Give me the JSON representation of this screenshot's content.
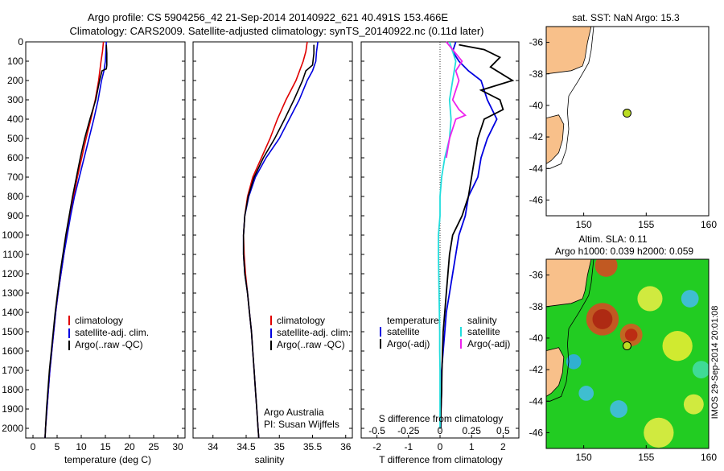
{
  "header": {
    "line1": "Argo profile: CS 5904256_42 21-Sep-2014 20140922_621 40.491S 153.466E",
    "line2": "Climatology: CARS2009. Satellite-adjusted climatology: synTS_20140922.nc (0.11d later)"
  },
  "colors": {
    "climatology": "#e00000",
    "satellite": "#0000e0",
    "argo": "#000000",
    "sal_satellite": "#22dddd",
    "sal_argo": "#ee22ee",
    "land": "#f8c08a"
  },
  "chart_data": [
    {
      "type": "line",
      "id": "temperature",
      "xlabel": "temperature (deg C)",
      "ylabel": "",
      "xlim": [
        -1.5,
        31.5
      ],
      "ylim": [
        2050,
        0
      ],
      "xticks": [
        0,
        5,
        10,
        15,
        20,
        25,
        30
      ],
      "yticks": [
        0,
        100,
        200,
        300,
        400,
        500,
        600,
        700,
        800,
        900,
        1000,
        1100,
        1200,
        1300,
        1400,
        1500,
        1600,
        1700,
        1800,
        1900,
        2000
      ],
      "legend": [
        "climatology",
        "satellite-adj. clim.",
        "Argo(..raw -QC)"
      ],
      "legend_position": "lower-center",
      "series": [
        {
          "name": "climatology",
          "color_key": "climatology",
          "points": [
            [
              14.6,
              0
            ],
            [
              14.4,
              50
            ],
            [
              14.1,
              100
            ],
            [
              13.6,
              200
            ],
            [
              12.9,
              300
            ],
            [
              12,
              400
            ],
            [
              11,
              500
            ],
            [
              10.1,
              600
            ],
            [
              9.2,
              700
            ],
            [
              8.4,
              800
            ],
            [
              7.7,
              900
            ],
            [
              7,
              1000
            ],
            [
              6.4,
              1100
            ],
            [
              5.8,
              1200
            ],
            [
              5.2,
              1300
            ],
            [
              4.7,
              1400
            ],
            [
              4.3,
              1500
            ],
            [
              3.9,
              1600
            ],
            [
              3.5,
              1700
            ],
            [
              3.2,
              1800
            ],
            [
              2.9,
              1900
            ],
            [
              2.6,
              2000
            ],
            [
              2.5,
              2050
            ]
          ]
        },
        {
          "name": "satellite-adj. clim.",
          "color_key": "satellite",
          "points": [
            [
              15.2,
              0
            ],
            [
              15.1,
              50
            ],
            [
              15,
              100
            ],
            [
              14.7,
              150
            ],
            [
              14.2,
              200
            ],
            [
              13.5,
              300
            ],
            [
              12.6,
              400
            ],
            [
              11.6,
              500
            ],
            [
              10.6,
              600
            ],
            [
              9.6,
              700
            ],
            [
              8.6,
              800
            ],
            [
              7.8,
              900
            ],
            [
              7.1,
              1000
            ],
            [
              6.4,
              1100
            ],
            [
              5.8,
              1200
            ],
            [
              5.2,
              1300
            ],
            [
              4.7,
              1400
            ],
            [
              4.3,
              1500
            ],
            [
              3.9,
              1600
            ],
            [
              3.5,
              1700
            ],
            [
              3.2,
              1800
            ],
            [
              2.9,
              1900
            ],
            [
              2.6,
              2000
            ],
            [
              2.5,
              2050
            ]
          ]
        },
        {
          "name": "Argo(..raw -QC)",
          "color_key": "argo",
          "points": [
            [
              15.2,
              15
            ],
            [
              15.3,
              60
            ],
            [
              15.3,
              120
            ],
            [
              15.2,
              140
            ],
            [
              14.3,
              150
            ],
            [
              13.8,
              200
            ],
            [
              13,
              300
            ],
            [
              11.8,
              400
            ],
            [
              10.7,
              500
            ],
            [
              9.8,
              600
            ],
            [
              9,
              700
            ],
            [
              8.2,
              800
            ],
            [
              7.5,
              900
            ],
            [
              6.8,
              1000
            ],
            [
              6.2,
              1100
            ],
            [
              5.6,
              1200
            ],
            [
              5.1,
              1300
            ],
            [
              4.6,
              1400
            ],
            [
              4.2,
              1500
            ],
            [
              3.8,
              1600
            ],
            [
              3.4,
              1700
            ],
            [
              3.1,
              1800
            ],
            [
              2.8,
              1900
            ],
            [
              2.6,
              2000
            ],
            [
              2.5,
              2050
            ]
          ]
        }
      ]
    },
    {
      "type": "line",
      "id": "salinity",
      "xlabel": "salinity",
      "ylabel": "",
      "xlim": [
        33.7,
        36.1
      ],
      "ylim": [
        2050,
        0
      ],
      "xticks": [
        34,
        34.5,
        35,
        35.5,
        36
      ],
      "yticks": [],
      "legend": [
        "climatology",
        "satellite-adj. clim.",
        "Argo(..raw -QC)"
      ],
      "legend_position": "lower-right",
      "annotation": [
        "Argo Australia",
        "PI: Susan Wijffels"
      ],
      "series": [
        {
          "name": "climatology",
          "color_key": "climatology",
          "points": [
            [
              35.42,
              0
            ],
            [
              35.4,
              50
            ],
            [
              35.36,
              100
            ],
            [
              35.25,
              200
            ],
            [
              35.1,
              300
            ],
            [
              34.97,
              400
            ],
            [
              34.86,
              500
            ],
            [
              34.73,
              600
            ],
            [
              34.6,
              700
            ],
            [
              34.52,
              800
            ],
            [
              34.48,
              900
            ],
            [
              34.46,
              1000
            ],
            [
              34.47,
              1100
            ],
            [
              34.49,
              1200
            ],
            [
              34.52,
              1300
            ],
            [
              34.55,
              1400
            ],
            [
              34.58,
              1500
            ],
            [
              34.6,
              1600
            ],
            [
              34.62,
              1700
            ],
            [
              34.64,
              1800
            ],
            [
              34.66,
              1900
            ],
            [
              34.68,
              2000
            ],
            [
              34.69,
              2050
            ]
          ]
        },
        {
          "name": "satellite-adj. clim.",
          "color_key": "satellite",
          "points": [
            [
              35.58,
              0
            ],
            [
              35.56,
              50
            ],
            [
              35.55,
              100
            ],
            [
              35.5,
              150
            ],
            [
              35.42,
              200
            ],
            [
              35.3,
              300
            ],
            [
              35.15,
              400
            ],
            [
              35.0,
              500
            ],
            [
              34.8,
              600
            ],
            [
              34.64,
              700
            ],
            [
              34.54,
              800
            ],
            [
              34.48,
              900
            ],
            [
              34.46,
              1000
            ],
            [
              34.46,
              1100
            ],
            [
              34.48,
              1200
            ],
            [
              34.52,
              1300
            ],
            [
              34.55,
              1400
            ],
            [
              34.58,
              1500
            ],
            [
              34.6,
              1600
            ],
            [
              34.62,
              1700
            ],
            [
              34.64,
              1800
            ],
            [
              34.66,
              1900
            ],
            [
              34.68,
              2000
            ],
            [
              34.69,
              2050
            ]
          ]
        },
        {
          "name": "Argo(..raw -QC)",
          "color_key": "argo",
          "points": [
            [
              35.52,
              15
            ],
            [
              35.52,
              60
            ],
            [
              35.5,
              120
            ],
            [
              35.4,
              150
            ],
            [
              35.35,
              200
            ],
            [
              35.22,
              300
            ],
            [
              35.08,
              400
            ],
            [
              34.93,
              500
            ],
            [
              34.76,
              600
            ],
            [
              34.62,
              700
            ],
            [
              34.53,
              800
            ],
            [
              34.48,
              900
            ],
            [
              34.46,
              1000
            ],
            [
              34.46,
              1100
            ],
            [
              34.48,
              1200
            ],
            [
              34.52,
              1300
            ],
            [
              34.55,
              1400
            ],
            [
              34.58,
              1500
            ],
            [
              34.6,
              1600
            ],
            [
              34.62,
              1700
            ],
            [
              34.64,
              1800
            ],
            [
              34.66,
              1900
            ],
            [
              34.68,
              2000
            ],
            [
              34.69,
              2050
            ]
          ]
        }
      ]
    },
    {
      "type": "line",
      "id": "difference",
      "xlabel": "T difference from climatology",
      "xlabel_top": "S difference from climatology",
      "xlim": [
        -2.5,
        2.5
      ],
      "ylim": [
        2050,
        0
      ],
      "xticks_T": [
        -2,
        -1,
        0,
        1,
        2
      ],
      "xticks_S": [
        "-0.5",
        "-0.25",
        "0",
        "0.25",
        "0.5"
      ],
      "legend_temperature": {
        "title": "temperature",
        "items": [
          "satellite",
          "Argo(-adj)"
        ]
      },
      "legend_salinity": {
        "title": "salinity",
        "items": [
          "satellite",
          "Argo(-adj)"
        ]
      },
      "legend_position": "lower-center",
      "series": [
        {
          "name": "T satellite",
          "color_key": "satellite",
          "points": [
            [
              0.5,
              0
            ],
            [
              0.4,
              50
            ],
            [
              0.6,
              100
            ],
            [
              0.9,
              150
            ],
            [
              1.3,
              200
            ],
            [
              1.5,
              300
            ],
            [
              1.8,
              400
            ],
            [
              1.5,
              500
            ],
            [
              1.3,
              600
            ],
            [
              1.2,
              700
            ],
            [
              0.9,
              800
            ],
            [
              0.8,
              900
            ],
            [
              0.6,
              1000
            ],
            [
              0.5,
              1100
            ],
            [
              0.4,
              1200
            ],
            [
              0.3,
              1300
            ],
            [
              0.2,
              1400
            ],
            [
              0.15,
              1500
            ],
            [
              0.1,
              1600
            ],
            [
              0.05,
              1700
            ],
            [
              0.05,
              1800
            ],
            [
              0.03,
              1900
            ],
            [
              0.02,
              2000
            ]
          ]
        },
        {
          "name": "T Argo(-adj)",
          "color_key": "argo",
          "points": [
            [
              0.6,
              15
            ],
            [
              1.4,
              40
            ],
            [
              1.9,
              80
            ],
            [
              1.6,
              130
            ],
            [
              2.3,
              200
            ],
            [
              1.3,
              250
            ],
            [
              1.9,
              300
            ],
            [
              2.0,
              350
            ],
            [
              1.4,
              400
            ],
            [
              1.2,
              500
            ],
            [
              1.1,
              600
            ],
            [
              1.0,
              700
            ],
            [
              0.9,
              800
            ],
            [
              0.7,
              900
            ],
            [
              0.4,
              1000
            ],
            [
              0.3,
              1100
            ],
            [
              0.25,
              1200
            ],
            [
              0.2,
              1300
            ],
            [
              0.15,
              1400
            ],
            [
              0.1,
              1500
            ],
            [
              0.08,
              1600
            ],
            [
              0.06,
              1700
            ],
            [
              0.05,
              1800
            ],
            [
              0.03,
              1900
            ],
            [
              0.02,
              2000
            ]
          ]
        },
        {
          "name": "S satellite",
          "color_key": "sal_satellite",
          "points": [
            [
              0.3,
              0
            ],
            [
              0.4,
              50
            ],
            [
              0.5,
              100
            ],
            [
              0.4,
              200
            ],
            [
              0.3,
              300
            ],
            [
              0.35,
              400
            ],
            [
              0.3,
              500
            ],
            [
              0.15,
              600
            ],
            [
              0.05,
              700
            ],
            [
              0.0,
              800
            ],
            [
              0.0,
              900
            ],
            [
              -0.05,
              1000
            ],
            [
              -0.05,
              1100
            ],
            [
              -0.04,
              1200
            ],
            [
              -0.03,
              1300
            ],
            [
              -0.02,
              1400
            ],
            [
              -0.01,
              1500
            ],
            [
              -0.01,
              1600
            ],
            [
              0.0,
              1700
            ],
            [
              0.0,
              1800
            ],
            [
              0.0,
              1900
            ],
            [
              0.0,
              2000
            ]
          ]
        },
        {
          "name": "S Argo(-adj)",
          "color_key": "sal_argo",
          "points": [
            [
              0.2,
              0
            ],
            [
              0.7,
              100
            ],
            [
              0.5,
              150
            ],
            [
              0.6,
              200
            ],
            [
              0.4,
              300
            ],
            [
              0.6,
              350
            ],
            [
              0.8,
              380
            ],
            [
              0.5,
              400
            ],
            [
              0.3,
              500
            ],
            [
              0.25,
              550
            ],
            [
              0.2,
              600
            ]
          ]
        }
      ]
    },
    {
      "type": "scatter",
      "id": "sst_map",
      "title": "sat. SST: NaN Argo: 15.3",
      "xlim": [
        147,
        160
      ],
      "ylim": [
        -47,
        -35
      ],
      "xticks": [
        150,
        155,
        160
      ],
      "yticks": [
        -36,
        -38,
        -40,
        -42,
        -44,
        -46
      ],
      "marker": {
        "x": 153.466,
        "y": -40.491
      }
    },
    {
      "type": "heatmap",
      "id": "sla_map",
      "title_line1": "Altim. SLA: 0.11",
      "title_line2": "Argo h1000: 0.039 h2000: 0.059",
      "xlim": [
        147,
        160
      ],
      "ylim": [
        -47,
        -35
      ],
      "xticks": [
        150,
        155,
        160
      ],
      "yticks": [
        -36,
        -38,
        -40,
        -42,
        -44,
        -46
      ],
      "marker": {
        "x": 153.466,
        "y": -40.491
      }
    }
  ],
  "footer": {
    "stamp": "IMOS 29-Sep-2014 20:01:08"
  }
}
